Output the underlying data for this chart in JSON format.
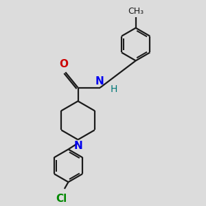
{
  "bg_color": "#dcdcdc",
  "bond_color": "#1a1a1a",
  "N_color": "#0000ee",
  "O_color": "#cc0000",
  "Cl_color": "#008800",
  "H_color": "#007777",
  "line_width": 1.6,
  "font_size": 10,
  "figsize": [
    3.0,
    3.0
  ],
  "dpi": 100,
  "xlim": [
    0,
    10
  ],
  "ylim": [
    0,
    10
  ]
}
